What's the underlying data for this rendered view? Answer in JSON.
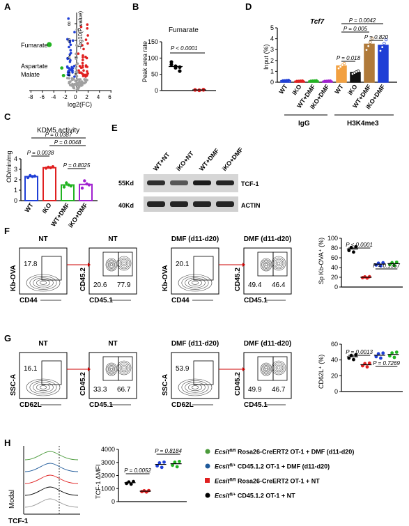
{
  "panels": {
    "A": {
      "label": "A",
      "xlabel": "log2(FC)",
      "ylabel": "-log10(P value)",
      "x_ticks": [
        "-8",
        "-6",
        "-4",
        "-2",
        "0",
        "2",
        "4",
        "6"
      ],
      "y_ticks": [
        "8",
        "6",
        "4",
        "2"
      ],
      "annotations": [
        "Fumarate",
        "Aspartate",
        "Malate"
      ],
      "colors": {
        "down": "#1f3fd6",
        "up": "#e02020",
        "highlight": "#22b322",
        "ns": "#a0a0a0"
      }
    },
    "B": {
      "label": "B",
      "title": "Fumarate",
      "ylabel": "Peak area rate",
      "pvalue": "P < 0.0001",
      "y_ticks": [
        "150",
        "100",
        "50",
        "0"
      ],
      "ylim": [
        0,
        150
      ],
      "groups": [
        {
          "color": "#000000",
          "values": [
            80,
            70,
            60,
            88,
            75,
            72
          ],
          "mean": 74
        },
        {
          "color": "#e02020",
          "values": [
            2,
            1,
            3,
            2,
            1,
            2
          ],
          "mean": 2
        }
      ]
    },
    "C": {
      "label": "C",
      "title": "KDM5 activity",
      "ylabel": "OD/min/mg",
      "y_ticks": [
        "4",
        "3",
        "2",
        "1",
        "0"
      ],
      "ylim": [
        0,
        4
      ],
      "categories": [
        "WT",
        "iKO",
        "WT+DMF",
        "iKO+DMF"
      ],
      "colors": [
        "#1f3fd6",
        "#e02020",
        "#22b322",
        "#a020d0"
      ],
      "means": [
        2.3,
        3.15,
        1.5,
        1.55
      ],
      "points": [
        [
          2.2,
          2.4,
          2.3,
          2.35
        ],
        [
          3.1,
          3.2,
          3.15,
          3.25
        ],
        [
          1.3,
          1.7,
          1.5,
          1.4
        ],
        [
          1.2,
          1.9,
          1.6,
          1.5
        ]
      ],
      "pvalues": [
        "P = 0.0387",
        "P = 0.0048",
        "P = 0.0038",
        "P = 0.8025"
      ]
    },
    "D": {
      "label": "D",
      "title": "Tcf7",
      "ylabel": "Input (%)",
      "y_ticks": [
        "5",
        "4",
        "3",
        "2",
        "1",
        "0"
      ],
      "ylim": [
        0,
        5
      ],
      "categories": [
        "WT",
        "iKO",
        "WT+DMF",
        "iKO+DMF",
        "WT",
        "iKO",
        "WT+DMF",
        "iKO+DMF"
      ],
      "group_labels": [
        "IgG",
        "H3K4me3"
      ],
      "colors": [
        "#1f3fd6",
        "#e02020",
        "#22b322",
        "#a020d0",
        "#f2a040",
        "#111111",
        "#b07a3a",
        "#1f3fd6"
      ],
      "means": [
        0.15,
        0.1,
        0.12,
        0.1,
        1.5,
        0.9,
        3.5,
        3.4
      ],
      "pvalues": [
        "P = 0.0042",
        "P = 0.005",
        "P = 0.820",
        "P = 0.018"
      ]
    },
    "E": {
      "label": "E",
      "lanes": [
        "WT+NT",
        "iKO+NT",
        "WT+DMF",
        "iKO+DMF"
      ],
      "markers": [
        "55Kd",
        "40Kd"
      ],
      "bands": [
        "TCF-1",
        "ACTIN"
      ],
      "tcf1_intensity": [
        0.85,
        0.65,
        0.95,
        0.9
      ]
    },
    "F": {
      "label": "F",
      "plots": [
        {
          "title": "NT",
          "xlabel": "CD44",
          "ylabel": "Kb-OVA",
          "gates": [
            "17.8"
          ]
        },
        {
          "title": "NT",
          "xlabel": "CD45.1",
          "ylabel": "CD45.2",
          "gates": [
            "20.6",
            "77.9"
          ]
        },
        {
          "title": "DMF (d11-d20)",
          "xlabel": "CD44",
          "ylabel": "Kb-OVA",
          "gates": [
            "20.1"
          ]
        },
        {
          "title": "DMF (d11-d20)",
          "xlabel": "CD45.1",
          "ylabel": "CD45.2",
          "gates": [
            "49.4",
            "46.4"
          ]
        }
      ],
      "summary": {
        "ylabel": "Sp Kb-OVA⁺ (%)",
        "y_ticks": [
          "100",
          "80",
          "60",
          "40",
          "20",
          "0"
        ],
        "ylim": [
          0,
          100
        ],
        "colors": [
          "#000000",
          "#e02020",
          "#1f3fd6",
          "#22b322"
        ],
        "means": [
          78,
          20,
          47,
          48
        ],
        "pvalues": [
          "P < 0.0001",
          "P = 0.1367"
        ]
      }
    },
    "G": {
      "label": "G",
      "plots": [
        {
          "title": "NT",
          "xlabel": "CD62L",
          "ylabel": "SSC-A",
          "gates": [
            "16.1"
          ]
        },
        {
          "title": "NT",
          "xlabel": "CD45.1",
          "ylabel": "CD45.2",
          "gates": [
            "33.3",
            "66.7"
          ]
        },
        {
          "title": "DMF (d11-d20)",
          "xlabel": "CD62L",
          "ylabel": "SSC-A",
          "gates": [
            "53.9"
          ]
        },
        {
          "title": "DMF (d11-d20)",
          "xlabel": "CD45.1",
          "ylabel": "CD45.2",
          "gates": [
            "49.9",
            "46.7"
          ]
        }
      ],
      "summary": {
        "ylabel": "CD62L⁺ (%)",
        "y_ticks": [
          "60",
          "40",
          "20",
          "0"
        ],
        "ylim": [
          0,
          60
        ],
        "colors": [
          "#000000",
          "#e02020",
          "#1f3fd6",
          "#22b322"
        ],
        "means": [
          44,
          34,
          46,
          47
        ],
        "pvalues": [
          "P = 0.0013",
          "P = 0.7269"
        ]
      }
    },
    "H": {
      "label": "H",
      "hist_ylabel": "Modal",
      "hist_xlabel": "TCF-1",
      "summary": {
        "ylabel": "TCF-1 ΔMFI",
        "y_ticks": [
          "4000",
          "3000",
          "2000",
          "1000",
          "0"
        ],
        "ylim": [
          0,
          4000
        ],
        "colors": [
          "#000000",
          "#e02020",
          "#1f3fd6",
          "#22b322"
        ],
        "means": [
          1450,
          800,
          2850,
          2900
        ],
        "pvalues": [
          "P = 0.0052",
          "P = 0.8184"
        ]
      },
      "legend": [
        {
          "color": "#4a9a3a",
          "gene": "Ecsit",
          "sup": "fl/fl",
          "rest": " Rosa26-CreERT2 OT-1 + DMF (d11-d20)"
        },
        {
          "color": "#1f5a9a",
          "gene": "Ecsit",
          "sup": "fl/+",
          "rest": " CD45.1.2 OT-1 + DMF (d11-d20)"
        },
        {
          "color": "#e02020",
          "gene": "Ecsit",
          "sup": "fl/fl",
          "rest": " Rosa26-CreERT2 OT-1 + NT"
        },
        {
          "color": "#000000",
          "gene": "Ecsit",
          "sup": "fl/+",
          "rest": " CD45.1.2 OT-1 + NT"
        }
      ]
    }
  }
}
